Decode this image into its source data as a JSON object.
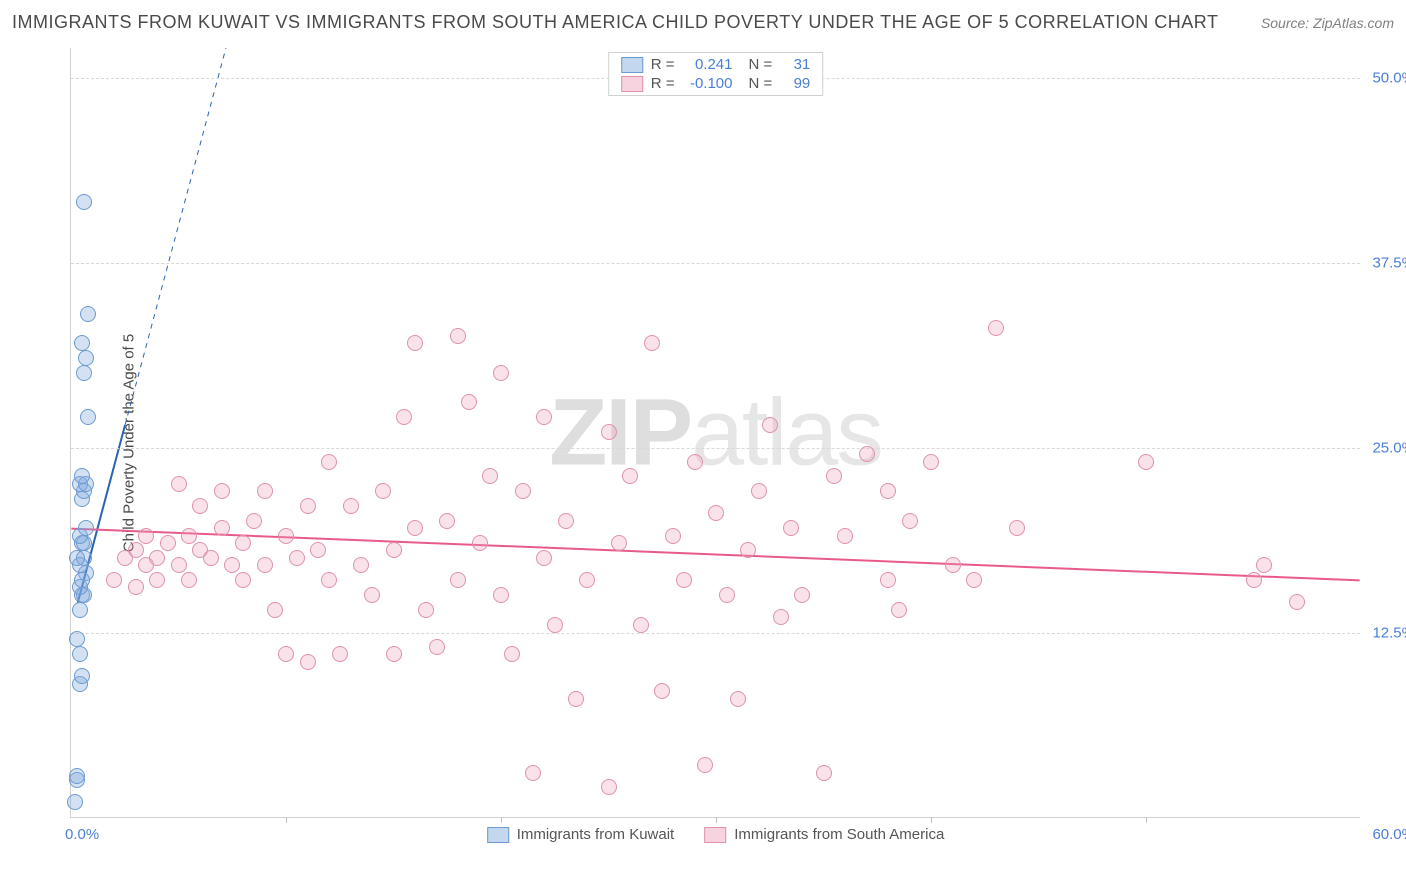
{
  "title": "IMMIGRANTS FROM KUWAIT VS IMMIGRANTS FROM SOUTH AMERICA CHILD POVERTY UNDER THE AGE OF 5 CORRELATION CHART",
  "source": "Source: ZipAtlas.com",
  "watermark_bold": "ZIP",
  "watermark_light": "atlas",
  "chart": {
    "type": "scatter",
    "y_label": "Child Poverty Under the Age of 5",
    "xlim": [
      0,
      60
    ],
    "ylim": [
      0,
      52
    ],
    "y_grid_values": [
      12.5,
      25.0,
      37.5,
      50.0
    ],
    "y_grid_labels": [
      "12.5%",
      "25.0%",
      "37.5%",
      "50.0%"
    ],
    "x_tick_values": [
      10,
      20,
      30,
      40,
      50
    ],
    "x_label_min": "0.0%",
    "x_label_max": "60.0%",
    "background_color": "#ffffff",
    "grid_color": "#d8d8d8",
    "series": [
      {
        "name": "Immigrants from Kuwait",
        "color_fill": "rgba(130,170,220,0.35)",
        "color_stroke": "#6b9bd1",
        "swatch_fill": "#c3d7ee",
        "swatch_border": "#6b9bd1",
        "R": "0.241",
        "N": "31",
        "trend_solid": {
          "x1": 0.3,
          "y1": 14.5,
          "x2": 2.5,
          "y2": 26.5,
          "color": "#2b62b5",
          "width": 2
        },
        "trend_dashed": {
          "x1": 2.5,
          "y1": 26.5,
          "x2": 7.2,
          "y2": 52,
          "color": "#2b62b5",
          "width": 1
        },
        "points": [
          [
            0.2,
            1.0
          ],
          [
            0.3,
            2.5
          ],
          [
            0.3,
            2.8
          ],
          [
            0.4,
            9.0
          ],
          [
            0.5,
            9.5
          ],
          [
            0.4,
            11.0
          ],
          [
            0.3,
            12.0
          ],
          [
            0.5,
            15.0
          ],
          [
            0.6,
            15.0
          ],
          [
            0.4,
            15.5
          ],
          [
            0.7,
            16.5
          ],
          [
            0.5,
            16.0
          ],
          [
            0.4,
            17.0
          ],
          [
            0.6,
            17.5
          ],
          [
            0.3,
            17.5
          ],
          [
            0.5,
            18.5
          ],
          [
            0.6,
            18.5
          ],
          [
            0.4,
            19.0
          ],
          [
            0.7,
            19.5
          ],
          [
            0.5,
            21.5
          ],
          [
            0.6,
            22.0
          ],
          [
            0.4,
            22.5
          ],
          [
            0.7,
            22.5
          ],
          [
            0.5,
            23.0
          ],
          [
            0.8,
            27.0
          ],
          [
            0.6,
            30.0
          ],
          [
            0.7,
            31.0
          ],
          [
            0.5,
            32.0
          ],
          [
            0.8,
            34.0
          ],
          [
            0.6,
            41.5
          ],
          [
            0.4,
            14.0
          ]
        ]
      },
      {
        "name": "Immigrants from South America",
        "color_fill": "rgba(240,160,185,0.30)",
        "color_stroke": "#e091ab",
        "swatch_fill": "#f6d3de",
        "swatch_border": "#e091ab",
        "R": "-0.100",
        "N": "99",
        "trend_solid": {
          "x1": 0,
          "y1": 19.5,
          "x2": 60,
          "y2": 16.0,
          "color": "#e85a8a",
          "width": 2
        },
        "points": [
          [
            2,
            16
          ],
          [
            2.5,
            17.5
          ],
          [
            3,
            15.5
          ],
          [
            3,
            18
          ],
          [
            3.5,
            17
          ],
          [
            3.5,
            19
          ],
          [
            4,
            17.5
          ],
          [
            4,
            16
          ],
          [
            4.5,
            18.5
          ],
          [
            5,
            17
          ],
          [
            5,
            22.5
          ],
          [
            5.5,
            19
          ],
          [
            5.5,
            16
          ],
          [
            6,
            18
          ],
          [
            6,
            21
          ],
          [
            6.5,
            17.5
          ],
          [
            7,
            19.5
          ],
          [
            7,
            22
          ],
          [
            7.5,
            17
          ],
          [
            8,
            16
          ],
          [
            8,
            18.5
          ],
          [
            8.5,
            20
          ],
          [
            9,
            17
          ],
          [
            9,
            22
          ],
          [
            9.5,
            14
          ],
          [
            10,
            19
          ],
          [
            10,
            11
          ],
          [
            10.5,
            17.5
          ],
          [
            11,
            10.5
          ],
          [
            11,
            21
          ],
          [
            11.5,
            18
          ],
          [
            12,
            16
          ],
          [
            12,
            24
          ],
          [
            12.5,
            11
          ],
          [
            13,
            21
          ],
          [
            13.5,
            17
          ],
          [
            14,
            15
          ],
          [
            14.5,
            22
          ],
          [
            15,
            11
          ],
          [
            15,
            18
          ],
          [
            15.5,
            27
          ],
          [
            16,
            19.5
          ],
          [
            16,
            32
          ],
          [
            16.5,
            14
          ],
          [
            17,
            11.5
          ],
          [
            17.5,
            20
          ],
          [
            18,
            16
          ],
          [
            18,
            32.5
          ],
          [
            18.5,
            28
          ],
          [
            19,
            18.5
          ],
          [
            19.5,
            23
          ],
          [
            20,
            15
          ],
          [
            20,
            30
          ],
          [
            20.5,
            11
          ],
          [
            21,
            22
          ],
          [
            21.5,
            3
          ],
          [
            22,
            27
          ],
          [
            22,
            17.5
          ],
          [
            22.5,
            13
          ],
          [
            23,
            20
          ],
          [
            23.5,
            8
          ],
          [
            24,
            16
          ],
          [
            25,
            26
          ],
          [
            25,
            2
          ],
          [
            25.5,
            18.5
          ],
          [
            26,
            23
          ],
          [
            26.5,
            13
          ],
          [
            27,
            32
          ],
          [
            27.5,
            8.5
          ],
          [
            28,
            19
          ],
          [
            28.5,
            16
          ],
          [
            29,
            24
          ],
          [
            29.5,
            3.5
          ],
          [
            30,
            20.5
          ],
          [
            30.5,
            15
          ],
          [
            31,
            8
          ],
          [
            31.5,
            18
          ],
          [
            32,
            22
          ],
          [
            32.5,
            26.5
          ],
          [
            33,
            13.5
          ],
          [
            33.5,
            19.5
          ],
          [
            34,
            15
          ],
          [
            35,
            3
          ],
          [
            35.5,
            23
          ],
          [
            36,
            19
          ],
          [
            37,
            24.5
          ],
          [
            38,
            16
          ],
          [
            38,
            22
          ],
          [
            38.5,
            14
          ],
          [
            39,
            20
          ],
          [
            40,
            24
          ],
          [
            41,
            17
          ],
          [
            42,
            16
          ],
          [
            43,
            33
          ],
          [
            44,
            19.5
          ],
          [
            50,
            24
          ],
          [
            55,
            16
          ],
          [
            57,
            14.5
          ],
          [
            55.5,
            17
          ]
        ]
      }
    ]
  },
  "legend_top": {
    "r_label": "R =",
    "n_label": "N ="
  }
}
